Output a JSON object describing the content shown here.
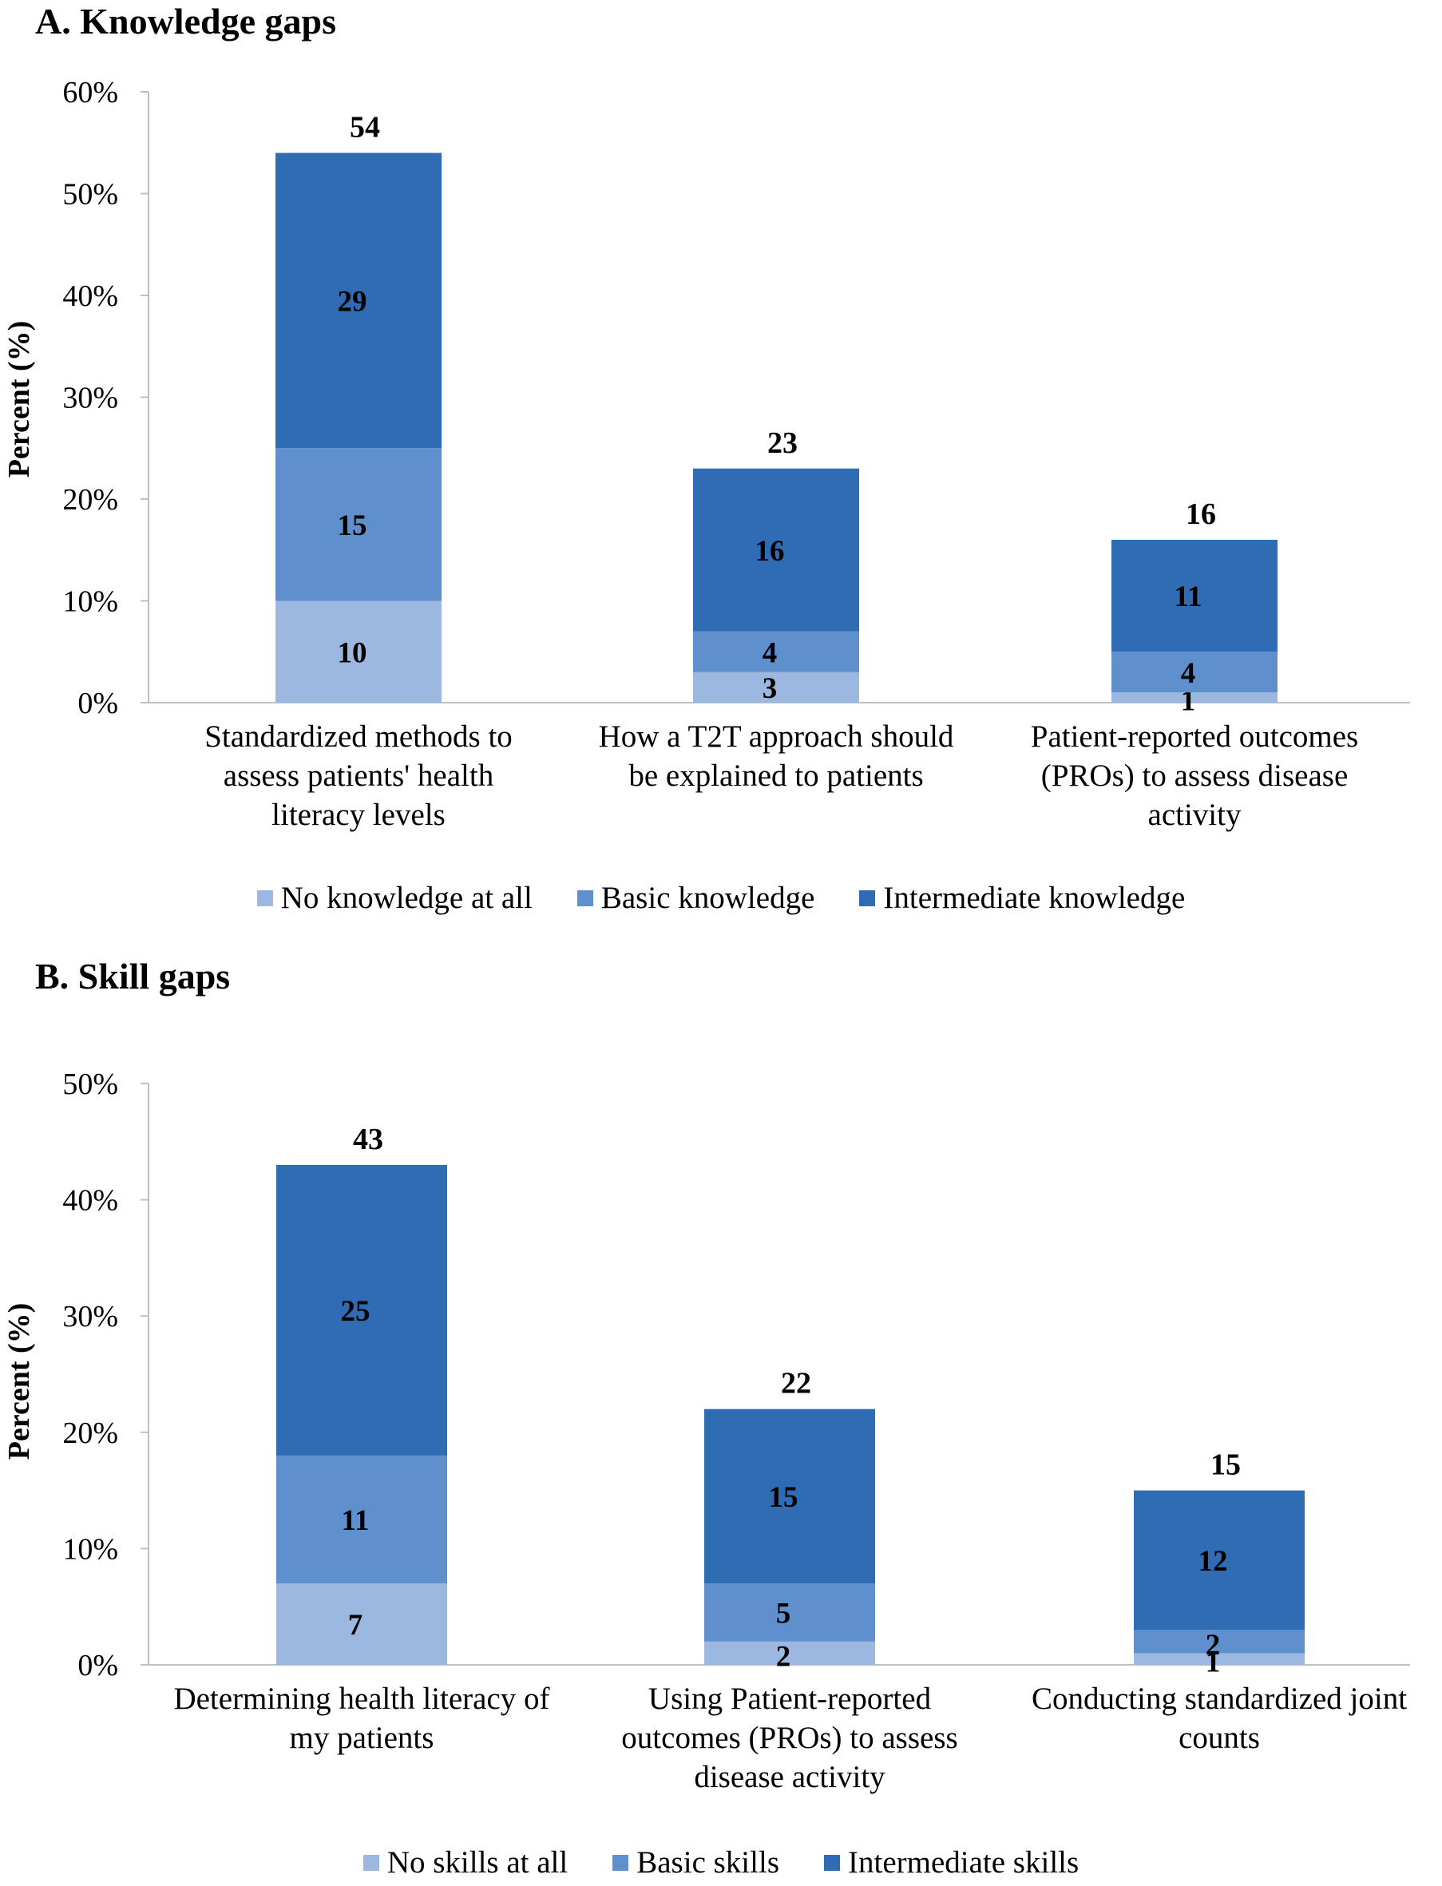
{
  "chart_data": [
    {
      "type": "bar",
      "stacked": true,
      "title": "A. Knowledge gaps",
      "xlabel": "",
      "ylabel": "Percent (%)",
      "ylim": [
        0,
        60
      ],
      "yticks": [
        "0%",
        "10%",
        "20%",
        "30%",
        "40%",
        "50%",
        "60%"
      ],
      "categories": [
        [
          "Standardized methods to",
          "assess patients' health",
          "literacy levels"
        ],
        [
          "How a T2T approach should",
          "be explained to patients"
        ],
        [
          "Patient-reported outcomes",
          "(PROs) to assess disease",
          "activity"
        ]
      ],
      "series": [
        {
          "name": "No knowledge at all",
          "values": [
            10,
            3,
            1
          ],
          "color": "#9db8e0"
        },
        {
          "name": "Basic knowledge",
          "values": [
            15,
            4,
            4
          ],
          "color": "#5f8fcc"
        },
        {
          "name": "Intermediate knowledge",
          "values": [
            29,
            16,
            11
          ],
          "color": "#2f6cb3"
        }
      ],
      "totals": [
        54,
        23,
        16
      ]
    },
    {
      "type": "bar",
      "stacked": true,
      "title": "B. Skill gaps",
      "xlabel": "",
      "ylabel": "Percent (%)",
      "ylim": [
        0,
        50
      ],
      "yticks": [
        "0%",
        "10%",
        "20%",
        "30%",
        "40%",
        "50%"
      ],
      "categories": [
        [
          "Determining health literacy of",
          "my patients"
        ],
        [
          "Using Patient-reported",
          "outcomes (PROs) to assess",
          "disease activity"
        ],
        [
          "Conducting standardized joint",
          "counts"
        ]
      ],
      "series": [
        {
          "name": "No skills at all",
          "values": [
            7,
            2,
            1
          ],
          "color": "#9db8e0"
        },
        {
          "name": "Basic skills",
          "values": [
            11,
            5,
            2
          ],
          "color": "#5f8fcc"
        },
        {
          "name": "Intermediate skills",
          "values": [
            25,
            15,
            12
          ],
          "color": "#2f6cb3"
        }
      ],
      "totals": [
        43,
        22,
        15
      ]
    }
  ]
}
